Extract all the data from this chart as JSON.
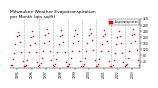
{
  "title": "Milwaukee Weather Evapotranspiration\nper Month (qts sq/ft)",
  "title_fontsize": 3.2,
  "dot_color": "red",
  "dot_size": 1.2,
  "bg_color": "white",
  "legend_label": "Evapotranspiration",
  "legend_color": "red",
  "ylim": [
    0,
    320
  ],
  "yticks": [
    40,
    80,
    120,
    160,
    200,
    240,
    280,
    320
  ],
  "ytick_labels": [
    "40",
    "80",
    "120",
    "160",
    "200",
    "240",
    "280",
    "320"
  ],
  "ytick_fontsize": 2.2,
  "xtick_fontsize": 2.2,
  "years": [
    "1995",
    "1996",
    "1997",
    "1998",
    "1999",
    "2000",
    "2001",
    "2002",
    "2003"
  ],
  "months_per_year": 12,
  "data": [
    15,
    20,
    55,
    95,
    155,
    205,
    235,
    215,
    170,
    105,
    42,
    12,
    10,
    18,
    52,
    100,
    150,
    200,
    240,
    210,
    165,
    100,
    38,
    10,
    14,
    28,
    62,
    108,
    162,
    212,
    255,
    228,
    178,
    112,
    48,
    14,
    12,
    22,
    56,
    105,
    155,
    205,
    245,
    215,
    170,
    105,
    40,
    12,
    10,
    24,
    60,
    110,
    160,
    210,
    250,
    220,
    175,
    110,
    46,
    10,
    13,
    26,
    66,
    112,
    165,
    215,
    255,
    225,
    180,
    115,
    50,
    13,
    12,
    22,
    58,
    106,
    158,
    208,
    248,
    218,
    172,
    108,
    43,
    12,
    10,
    18,
    52,
    98,
    152,
    198,
    238,
    208,
    165,
    98,
    36,
    10,
    14,
    26,
    62,
    110,
    163,
    213,
    253,
    223,
    178,
    113,
    48,
    14
  ],
  "grid_color": "#aaaaaa",
  "grid_linestyle": "--",
  "grid_linewidth": 0.4
}
